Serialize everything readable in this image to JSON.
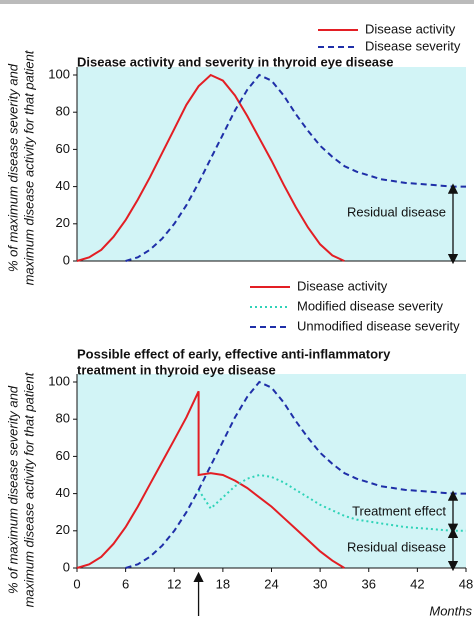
{
  "chart_data": [
    {
      "type": "line",
      "title": "Disease activity and severity in thyroid eye disease",
      "ylabel": [
        "% of maximum disease severity and",
        "maximum disease activity for that patient"
      ],
      "x": [
        0,
        1.5,
        3,
        4.5,
        6,
        7.5,
        9,
        10.5,
        12,
        13.5,
        15,
        16.5,
        18,
        19.5,
        21,
        22.5,
        24,
        25.5,
        27,
        28.5,
        30,
        31.5,
        33,
        34.5,
        36,
        37.5,
        39,
        40.5,
        42,
        43.5,
        45,
        46.5,
        48
      ],
      "series": [
        {
          "name": "Disease activity",
          "color": "#e31e24",
          "style": "solid",
          "values": [
            0,
            2,
            6,
            13,
            22,
            33,
            45,
            58,
            71,
            84,
            94,
            100,
            97,
            89,
            78,
            66,
            54,
            41,
            29,
            18,
            9,
            3,
            0,
            null,
            null,
            null,
            null,
            null,
            null,
            null,
            null,
            null,
            null
          ]
        },
        {
          "name": "Disease severity",
          "color": "#1f2fa8",
          "style": "dashed",
          "values": [
            null,
            null,
            null,
            null,
            0,
            2,
            6,
            12,
            20,
            30,
            42,
            55,
            68,
            81,
            92,
            100,
            97,
            89,
            79,
            70,
            62,
            56,
            51,
            48,
            46,
            44,
            43,
            42,
            41.5,
            41,
            40.5,
            40,
            40
          ]
        }
      ],
      "annotations": [
        "Residual disease"
      ],
      "xlim": [
        0,
        48
      ],
      "ylim": [
        0,
        100
      ],
      "yticks": [
        0,
        20,
        40,
        60,
        80,
        100
      ],
      "background": "#d2f4f6"
    },
    {
      "type": "line",
      "title": [
        "Possible effect of early, effective anti-inflammatory",
        "treatment in thyroid eye disease"
      ],
      "ylabel": [
        "% of maximum disease severity and",
        "maximum disease activity for that patient"
      ],
      "xlabel": "Months",
      "x": [
        0,
        1.5,
        3,
        4.5,
        6,
        7.5,
        9,
        10.5,
        12,
        13.5,
        15,
        15,
        16.5,
        18,
        19.5,
        21,
        22.5,
        24,
        25.5,
        27,
        28.5,
        30,
        31.5,
        33,
        34.5,
        36,
        37.5,
        39,
        40.5,
        42,
        43.5,
        45,
        46.5,
        48
      ],
      "series": [
        {
          "name": "Disease activity",
          "color": "#e31e24",
          "style": "solid",
          "values": [
            0,
            2,
            6,
            13,
            22,
            33,
            45,
            57,
            69,
            81,
            95,
            50,
            51,
            50,
            47,
            43,
            38,
            33,
            27,
            21,
            15,
            9,
            4,
            0,
            null,
            null,
            null,
            null,
            null,
            null,
            null,
            null,
            null,
            null
          ]
        },
        {
          "name": "Modified disease severity",
          "color": "#2fd3b8",
          "style": "dotted",
          "values": [
            null,
            null,
            null,
            null,
            null,
            null,
            null,
            null,
            null,
            null,
            null,
            42,
            32,
            38,
            44,
            48,
            50,
            49,
            46,
            42,
            38,
            34,
            31,
            28,
            26,
            25,
            24,
            23,
            22,
            21.5,
            21,
            20.5,
            20,
            20
          ]
        },
        {
          "name": "Unmodified disease severity",
          "color": "#1f2fa8",
          "style": "dashed",
          "values": [
            null,
            null,
            null,
            null,
            0,
            2,
            6,
            12,
            20,
            30,
            42,
            42,
            55,
            68,
            81,
            92,
            100,
            97,
            89,
            79,
            70,
            62,
            56,
            51,
            48,
            46,
            44,
            43,
            42,
            41.5,
            41,
            40.5,
            40,
            40
          ]
        }
      ],
      "annotations": [
        "Treatment effect",
        "Residual disease"
      ],
      "xlim": [
        0,
        48
      ],
      "ylim": [
        0,
        100
      ],
      "xticks": [
        0,
        6,
        12,
        18,
        24,
        30,
        36,
        42,
        48
      ],
      "yticks": [
        0,
        20,
        40,
        60,
        80,
        100
      ],
      "background": "#d2f4f6"
    }
  ]
}
